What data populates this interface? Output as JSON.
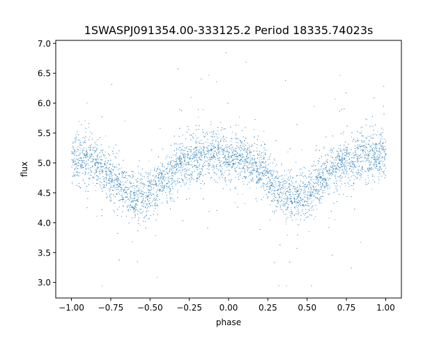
{
  "chart_data": {
    "type": "scatter",
    "title": "1SWASPJ091354.00-333125.2 Period 18335.74023s",
    "xlabel": "phase",
    "ylabel": "flux",
    "xlim": [
      -1.1,
      1.1
    ],
    "ylim": [
      2.74,
      7.05
    ],
    "xticks": [
      -1.0,
      -0.75,
      -0.5,
      -0.25,
      0.0,
      0.25,
      0.5,
      0.75,
      1.0
    ],
    "xtick_labels": [
      "−1.00",
      "−0.75",
      "−0.50",
      "−0.25",
      "0.00",
      "0.25",
      "0.50",
      "0.75",
      "1.00"
    ],
    "yticks": [
      3.0,
      3.5,
      4.0,
      4.5,
      5.0,
      5.5,
      6.0,
      6.5,
      7.0
    ],
    "ytick_labels": [
      "3.0",
      "3.5",
      "4.0",
      "4.5",
      "5.0",
      "5.5",
      "6.0",
      "6.5",
      "7.0"
    ],
    "grid": false,
    "legend": "none",
    "color": "#1f77b4",
    "binned_phase": [
      -1.0,
      -0.9,
      -0.8,
      -0.7,
      -0.6,
      -0.5,
      -0.4,
      -0.3,
      -0.2,
      -0.1,
      0.0,
      0.1,
      0.2,
      0.3,
      0.4,
      0.5,
      0.6,
      0.7,
      0.8,
      0.9,
      1.0
    ],
    "binned_mean_flux": [
      5.05,
      5.05,
      4.9,
      4.65,
      4.42,
      4.5,
      4.75,
      4.98,
      5.1,
      5.15,
      5.12,
      5.05,
      4.9,
      4.6,
      4.4,
      4.5,
      4.75,
      4.98,
      5.08,
      5.12,
      5.12
    ],
    "scatter_sigma": 0.2,
    "x_range_data": [
      -1.0,
      1.0
    ],
    "y_range_data": [
      2.95,
      6.85
    ]
  }
}
